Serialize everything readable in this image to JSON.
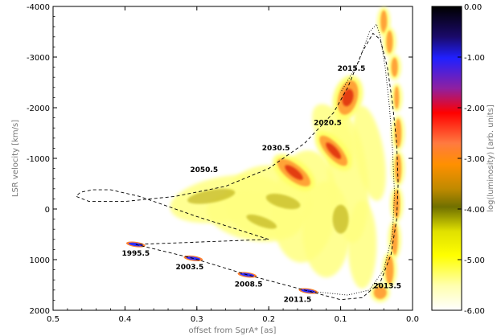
{
  "chart_data": {
    "type": "scatter",
    "title": "",
    "xlabel": "offset from SgrA* [as]",
    "ylabel": "LSR velocity [km/s]",
    "xlim": [
      0.5,
      0.0
    ],
    "ylim": [
      2000,
      -4000
    ],
    "x_ticks": [
      "0.5",
      "0.4",
      "0.3",
      "0.2",
      "0.1",
      "0.0"
    ],
    "x_tick_values": [
      0.5,
      0.4,
      0.3,
      0.2,
      0.1,
      0.0
    ],
    "y_ticks": [
      "-4000",
      "-3000",
      "-2000",
      "-1000",
      "0",
      "1000",
      "2000"
    ],
    "y_tick_values": [
      -4000,
      -3000,
      -2000,
      -1000,
      0,
      1000,
      2000
    ],
    "colorbar": {
      "label": "log(luminosity) [arb. units]",
      "range": [
        -6.0,
        0.0
      ],
      "ticks": [
        "0.00",
        "-1.00",
        "-2.00",
        "-3.00",
        "-4.00",
        "-5.00",
        "-6.00"
      ],
      "tick_values": [
        0,
        -1,
        -2,
        -3,
        -4,
        -5,
        -6
      ],
      "colors": [
        "#000000",
        "#2020ff",
        "#ff0000",
        "#ff9000",
        "#707000",
        "#ffff00",
        "#ffffff"
      ]
    },
    "epochs": [
      {
        "label": "1995.5",
        "offset": 0.385,
        "velocity": 700,
        "label_x": 0.385,
        "label_v": 920
      },
      {
        "label": "2003.5",
        "offset": 0.305,
        "velocity": 975,
        "label_x": 0.31,
        "label_v": 1190
      },
      {
        "label": "2008.5",
        "offset": 0.23,
        "velocity": 1300,
        "label_x": 0.228,
        "label_v": 1530
      },
      {
        "label": "2011.5",
        "offset": 0.145,
        "velocity": 1620,
        "label_x": 0.16,
        "label_v": 1830
      },
      {
        "label": "2013.5",
        "offset": 0.03,
        "velocity": 1500,
        "label_x": 0.035,
        "label_v": 1560
      },
      {
        "label": "2015.5",
        "offset": 0.085,
        "velocity": -2250,
        "label_x": 0.085,
        "label_v": -2730
      },
      {
        "label": "2020.5",
        "offset": 0.105,
        "velocity": -1250,
        "label_x": 0.118,
        "label_v": -1660
      },
      {
        "label": "2030.5",
        "offset": 0.165,
        "velocity": -720,
        "label_x": 0.19,
        "label_v": -1160
      },
      {
        "label": "2050.5",
        "offset": 0.24,
        "velocity": -200,
        "label_x": 0.29,
        "label_v": -730
      }
    ],
    "orbit_dashed": [
      [
        0.385,
        700
      ],
      [
        0.305,
        975
      ],
      [
        0.23,
        1300
      ],
      [
        0.145,
        1620
      ],
      [
        0.1,
        1790
      ],
      [
        0.07,
        1750
      ],
      [
        0.045,
        1450
      ],
      [
        0.03,
        900
      ],
      [
        0.022,
        200
      ],
      [
        0.02,
        -500
      ],
      [
        0.022,
        -1300
      ],
      [
        0.028,
        -2100
      ],
      [
        0.035,
        -2800
      ],
      [
        0.045,
        -3350
      ],
      [
        0.055,
        -3470
      ],
      [
        0.07,
        -3100
      ],
      [
        0.09,
        -2400
      ],
      [
        0.11,
        -1900
      ],
      [
        0.15,
        -1300
      ],
      [
        0.2,
        -800
      ],
      [
        0.26,
        -450
      ],
      [
        0.33,
        -250
      ],
      [
        0.4,
        -150
      ],
      [
        0.45,
        -150
      ],
      [
        0.468,
        -250
      ],
      [
        0.462,
        -330
      ],
      [
        0.445,
        -380
      ],
      [
        0.42,
        -380
      ],
      [
        0.38,
        -250
      ],
      [
        0.3,
        150
      ],
      [
        0.2,
        600
      ],
      [
        0.385,
        700
      ]
    ],
    "orbit_dotted": [
      [
        0.145,
        1620
      ],
      [
        0.09,
        1700
      ],
      [
        0.06,
        1600
      ],
      [
        0.04,
        1200
      ],
      [
        0.028,
        500
      ],
      [
        0.025,
        -300
      ],
      [
        0.028,
        -1200
      ],
      [
        0.032,
        -2000
      ],
      [
        0.038,
        -2800
      ],
      [
        0.045,
        -3400
      ],
      [
        0.05,
        -3650
      ],
      [
        0.06,
        -3500
      ],
      [
        0.075,
        -2900
      ],
      [
        0.1,
        -2300
      ]
    ]
  }
}
